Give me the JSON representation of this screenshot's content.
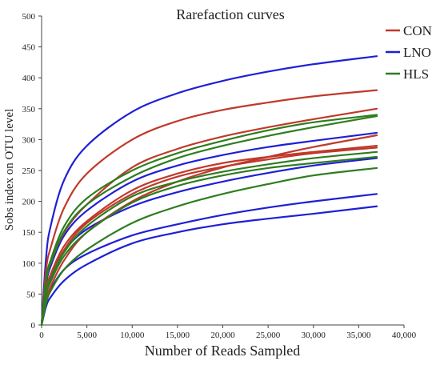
{
  "chart_data": {
    "type": "line",
    "title": "Rarefaction curves",
    "xlabel": "Number of Reads Sampled",
    "ylabel": "Sobs index on OTU level",
    "xlim": [
      0,
      40000
    ],
    "ylim": [
      0,
      500
    ],
    "x_ticks": [
      0,
      5000,
      10000,
      15000,
      20000,
      25000,
      30000,
      35000,
      40000
    ],
    "x_tick_labels": [
      "0",
      "5,000",
      "10,000",
      "15,000",
      "20,000",
      "25,000",
      "30,000",
      "35,000",
      "40,000"
    ],
    "y_ticks": [
      0,
      50,
      100,
      150,
      200,
      250,
      300,
      350,
      400,
      450,
      500
    ],
    "y_tick_labels": [
      "0",
      "50",
      "100",
      "150",
      "200",
      "250",
      "300",
      "350",
      "400",
      "450",
      "500"
    ],
    "grid": false,
    "legend": {
      "position": "top-right",
      "entries": [
        {
          "label": "CON",
          "color": "#c0392b"
        },
        {
          "label": "LNO",
          "color": "#1f1fd6"
        },
        {
          "label": "HLS",
          "color": "#2e7d1f"
        }
      ]
    },
    "x": [
      0,
      500,
      1000,
      2500,
      5000,
      10000,
      15000,
      20000,
      25000,
      30000,
      37000
    ],
    "series": [
      {
        "group": "LNO",
        "color": "#1f1fd6",
        "values": [
          0,
          110,
          160,
          235,
          290,
          345,
          375,
          395,
          410,
          422,
          435
        ]
      },
      {
        "group": "LNO",
        "color": "#1f1fd6",
        "values": [
          0,
          65,
          95,
          145,
          185,
          232,
          258,
          275,
          288,
          298,
          311
        ]
      },
      {
        "group": "LNO",
        "color": "#1f1fd6",
        "values": [
          0,
          55,
          80,
          120,
          155,
          192,
          215,
          232,
          246,
          258,
          270
        ]
      },
      {
        "group": "LNO",
        "color": "#1f1fd6",
        "values": [
          0,
          40,
          58,
          90,
          115,
          145,
          163,
          178,
          190,
          200,
          212
        ]
      },
      {
        "group": "LNO",
        "color": "#1f1fd6",
        "values": [
          0,
          30,
          45,
          72,
          98,
          132,
          150,
          163,
          172,
          180,
          192
        ]
      },
      {
        "group": "CON",
        "color": "#c0392b",
        "values": [
          0,
          90,
          125,
          190,
          245,
          300,
          330,
          348,
          360,
          370,
          380
        ]
      },
      {
        "group": "CON",
        "color": "#c0392b",
        "values": [
          0,
          70,
          100,
          150,
          195,
          255,
          285,
          305,
          320,
          333,
          350
        ]
      },
      {
        "group": "CON",
        "color": "#c0392b",
        "values": [
          0,
          40,
          62,
          105,
          150,
          200,
          232,
          255,
          272,
          288,
          307
        ]
      },
      {
        "group": "CON",
        "color": "#c0392b",
        "values": [
          0,
          55,
          82,
          128,
          168,
          218,
          245,
          262,
          272,
          280,
          290
        ]
      },
      {
        "group": "CON",
        "color": "#c0392b",
        "values": [
          0,
          52,
          78,
          122,
          165,
          212,
          240,
          256,
          268,
          278,
          287
        ]
      },
      {
        "group": "HLS",
        "color": "#2e7d1f",
        "values": [
          0,
          75,
          105,
          160,
          205,
          250,
          278,
          298,
          315,
          328,
          340
        ]
      },
      {
        "group": "HLS",
        "color": "#2e7d1f",
        "values": [
          0,
          70,
          100,
          152,
          195,
          240,
          270,
          290,
          306,
          320,
          338
        ]
      },
      {
        "group": "HLS",
        "color": "#2e7d1f",
        "values": [
          0,
          50,
          75,
          118,
          160,
          208,
          232,
          248,
          260,
          270,
          280
        ]
      },
      {
        "group": "HLS",
        "color": "#2e7d1f",
        "values": [
          0,
          48,
          70,
          112,
          150,
          198,
          225,
          242,
          254,
          262,
          272
        ]
      },
      {
        "group": "HLS",
        "color": "#2e7d1f",
        "values": [
          0,
          35,
          55,
          90,
          122,
          165,
          192,
          212,
          228,
          242,
          254
        ]
      }
    ]
  }
}
